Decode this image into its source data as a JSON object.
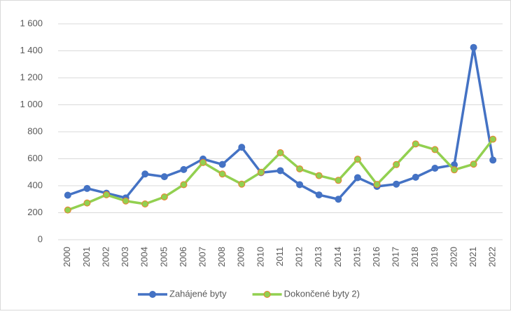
{
  "chart_data": {
    "type": "line",
    "categories": [
      "2000",
      "2001",
      "2002",
      "2003",
      "2004",
      "2005",
      "2006",
      "2007",
      "2008",
      "2009",
      "2010",
      "2011",
      "2012",
      "2013",
      "2014",
      "2015",
      "2016",
      "2017",
      "2018",
      "2019",
      "2020",
      "2021",
      "2022"
    ],
    "series": [
      {
        "name": "Zahájené byty",
        "color": "#4472c4",
        "marker_edge": "#4472c4",
        "values": [
          330,
          380,
          345,
          310,
          487,
          467,
          520,
          598,
          558,
          685,
          497,
          512,
          408,
          332,
          300,
          460,
          395,
          412,
          463,
          530,
          555,
          1425,
          590
        ]
      },
      {
        "name": "Dokončené byty 2)",
        "color": "#92d050",
        "marker_edge": "#ed7d31",
        "values": [
          220,
          272,
          333,
          287,
          265,
          317,
          408,
          572,
          487,
          412,
          500,
          645,
          525,
          475,
          440,
          597,
          410,
          557,
          710,
          668,
          518,
          560,
          745
        ]
      }
    ],
    "ylim": [
      0,
      1600
    ],
    "yticks": [
      0,
      200,
      400,
      600,
      800,
      {
        "value": 1000,
        "label": "1 000"
      },
      {
        "value": 1200,
        "label": "1 200"
      },
      {
        "value": 1400,
        "label": "1 400"
      },
      {
        "value": 1600,
        "label": "1 600"
      }
    ],
    "grid": true,
    "legend": "bottom"
  }
}
